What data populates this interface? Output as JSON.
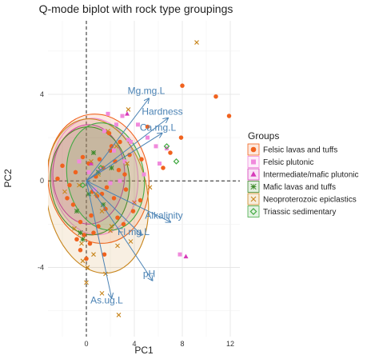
{
  "chart_data": {
    "type": "scatter",
    "subtype": "pca-biplot",
    "title": "Q-mode biplot with rock type groupings",
    "xlabel": "PC1",
    "ylabel": "PC2",
    "xlim": [
      -3.2,
      12.8
    ],
    "ylim": [
      -7.2,
      7.4
    ],
    "x_ticks": [
      0,
      4,
      8,
      12
    ],
    "y_ticks": [
      -4,
      0,
      4
    ],
    "grid": true,
    "reference_lines": [
      "x=0 dashed",
      "y=0 dashed"
    ],
    "legend": {
      "title": "Groups",
      "position": "right",
      "entries": [
        {
          "label": "Felsic lavas and tuffs",
          "marker": "circle",
          "color": "#f0621e"
        },
        {
          "label": "Felsic plutonic",
          "marker": "square",
          "color": "#f08adc"
        },
        {
          "label": "Intermediate/mafic plutonic",
          "marker": "triangle",
          "color": "#d63ab9"
        },
        {
          "label": "Mafic lavas and tuffs",
          "marker": "asterisk",
          "color": "#3f8a2c"
        },
        {
          "label": "Neoproterozoic epiclastics",
          "marker": "cross",
          "color": "#c8861e"
        },
        {
          "label": "Triassic sedimentary",
          "marker": "diamond",
          "color": "#44aa44"
        }
      ]
    },
    "loadings": [
      {
        "name": "Mg.mg.L",
        "x": 5.2,
        "y": 3.8
      },
      {
        "name": "Hardness",
        "x": 6.8,
        "y": 2.9
      },
      {
        "name": "Ca.mg.L",
        "x": 6.3,
        "y": 2.2
      },
      {
        "name": "Alkalinity",
        "x": 7.0,
        "y": -1.9
      },
      {
        "name": "Fl.mg.L",
        "x": 4.6,
        "y": -2.5
      },
      {
        "name": "pH",
        "x": 5.5,
        "y": -4.6
      },
      {
        "name": "As.ug.L",
        "x": 2.1,
        "y": -5.4
      }
    ],
    "series": [
      {
        "name": "Felsic lavas and tuffs",
        "color": "#f0621e",
        "marker": "circle",
        "x": [
          8.0,
          10.8,
          11.9,
          7.9,
          7.0,
          6.4,
          5.1,
          4.6,
          3.6,
          3.2,
          2.8,
          2.4,
          2.0,
          1.7,
          1.4,
          1.1,
          0.8,
          0.5,
          0.2,
          -0.3,
          -0.9,
          -1.4,
          -2.0,
          -2.4,
          -1.1,
          0.4,
          0.9,
          1.6,
          2.3,
          3.1,
          3.9,
          4.5,
          2.7,
          1.3,
          0.6,
          -0.5,
          -1.6,
          2.1,
          1.5,
          3.3,
          0.3,
          1.9,
          2.6,
          -0.2,
          1.0,
          0.0,
          -0.8,
          -0.5
        ],
        "y": [
          4.4,
          3.9,
          3.0,
          2.0,
          1.3,
          0.6,
          2.5,
          1.0,
          1.2,
          0.3,
          1.8,
          0.9,
          1.4,
          -0.3,
          0.6,
          1.0,
          0.2,
          -0.5,
          0.8,
          1.1,
          0.4,
          -0.2,
          0.7,
          0.1,
          -1.1,
          -1.6,
          -0.7,
          -1.3,
          -0.8,
          -2.0,
          -1.4,
          -0.9,
          0.5,
          -0.6,
          -2.4,
          -1.9,
          -0.8,
          1.6,
          -3.4,
          -0.4,
          -2.9,
          2.2,
          -1.7,
          -2.5,
          -2.1,
          -3.6,
          -2.7,
          -3.2
        ]
      },
      {
        "name": "Felsic plutonic",
        "color": "#f08adc",
        "marker": "square",
        "x": [
          3.0,
          4.3,
          5.1,
          3.7,
          2.3,
          1.5,
          3.2,
          6.1,
          4.8,
          2.8,
          1.1,
          2.0,
          3.5,
          0.2,
          -0.6,
          0.7,
          4.0,
          5.8,
          2.5,
          1.8,
          7.8,
          6.7
        ],
        "y": [
          3.0,
          2.6,
          2.0,
          1.8,
          1.4,
          2.3,
          0.9,
          0.8,
          0.3,
          0.0,
          0.5,
          -0.1,
          1.9,
          0.4,
          0.9,
          -0.4,
          -1.0,
          1.6,
          2.6,
          3.1,
          -3.4,
          1.5
        ]
      },
      {
        "name": "Intermediate/mafic plutonic",
        "color": "#d63ab9",
        "marker": "triangle",
        "x": [
          8.3,
          3.4,
          0.4
        ],
        "y": [
          -3.5,
          3.1,
          0.8
        ]
      },
      {
        "name": "Mafic lavas and tuffs",
        "color": "#3f8a2c",
        "marker": "asterisk",
        "x": [
          -0.5,
          -0.3,
          0.2,
          1.0,
          1.4,
          0.6,
          -0.8,
          2.1
        ],
        "y": [
          -2.4,
          -2.7,
          -0.6,
          0.4,
          -1.1,
          1.3,
          -1.4,
          0.6
        ]
      },
      {
        "name": "Neoproterozoic epiclastics",
        "color": "#c8861e",
        "marker": "cross",
        "x": [
          9.2,
          3.5,
          1.8,
          2.5,
          0.4,
          -0.6,
          0.8,
          1.3,
          2.0,
          -1.0,
          -0.4,
          0.6,
          2.6,
          3.7,
          0.1,
          -0.3,
          1.6,
          2.1,
          1.3,
          4.0,
          2.7,
          5.3,
          3.4,
          0.0,
          -1.8,
          1.0
        ],
        "y": [
          6.4,
          3.3,
          2.3,
          1.6,
          0.9,
          -0.2,
          -0.6,
          -1.4,
          -2.3,
          -2.2,
          -2.9,
          -3.4,
          -3.0,
          -2.8,
          -4.0,
          -3.7,
          -4.3,
          -2.1,
          -5.2,
          -1.0,
          -6.2,
          -0.3,
          0.8,
          -4.7,
          -0.5,
          0.3
        ]
      },
      {
        "name": "Triassic sedimentary",
        "color": "#44aa44",
        "marker": "diamond",
        "x": [
          7.5,
          6.7,
          1.2,
          -0.3
        ],
        "y": [
          0.9,
          1.6,
          0.6,
          -0.2
        ]
      }
    ],
    "ellipses": [
      {
        "group": "Felsic lavas and tuffs",
        "cx": 1.0,
        "cy": 0.1,
        "rx": 4.2,
        "ry": 3.0,
        "angle": 8
      },
      {
        "group": "Felsic plutonic",
        "cx": 0.7,
        "cy": 0.2,
        "rx": 3.6,
        "ry": 2.7,
        "angle": 6
      },
      {
        "group": "Intermediate/mafic plutonic",
        "cx": 0.2,
        "cy": 0.3,
        "rx": 3.0,
        "ry": 2.3,
        "angle": 0
      },
      {
        "group": "Mafic lavas and tuffs",
        "cx": 0.3,
        "cy": 0.0,
        "rx": 3.3,
        "ry": 2.5,
        "angle": 4
      },
      {
        "group": "Neoproterozoic epiclastics",
        "cx": 0.9,
        "cy": -0.7,
        "rx": 4.2,
        "ry": 3.6,
        "angle": 10
      },
      {
        "group": "Triassic sedimentary",
        "cx": 1.6,
        "cy": 0.2,
        "rx": 3.2,
        "ry": 2.5,
        "angle": 10
      }
    ]
  }
}
